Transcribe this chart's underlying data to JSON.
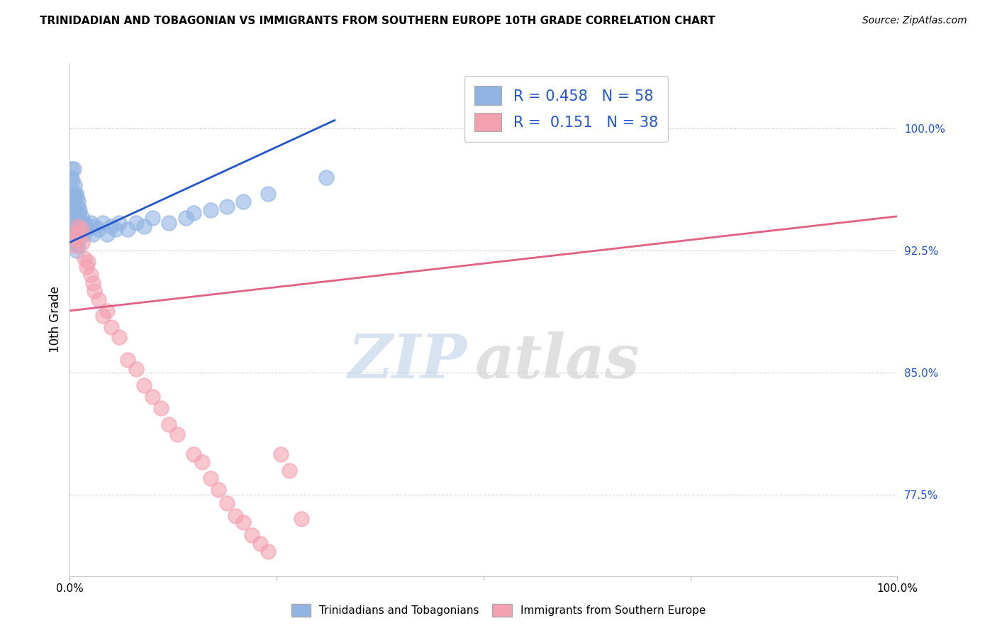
{
  "title": "TRINIDADIAN AND TOBAGONIAN VS IMMIGRANTS FROM SOUTHERN EUROPE 10TH GRADE CORRELATION CHART",
  "source": "Source: ZipAtlas.com",
  "ylabel": "10th Grade",
  "yaxis_labels": [
    "77.5%",
    "85.0%",
    "92.5%",
    "100.0%"
  ],
  "yaxis_values": [
    0.775,
    0.85,
    0.925,
    1.0
  ],
  "xaxis_range": [
    0.0,
    1.0
  ],
  "yaxis_range": [
    0.725,
    1.04
  ],
  "blue_color": "#92b4e3",
  "pink_color": "#f4a0b0",
  "line_blue": "#2255cc",
  "line_pink": "#e06080",
  "watermark_zip": "ZIP",
  "watermark_atlas": "atlas",
  "blue_scatter_x": [
    0.001,
    0.002,
    0.002,
    0.003,
    0.003,
    0.004,
    0.004,
    0.005,
    0.005,
    0.005,
    0.006,
    0.006,
    0.006,
    0.007,
    0.007,
    0.007,
    0.008,
    0.008,
    0.008,
    0.008,
    0.009,
    0.009,
    0.01,
    0.01,
    0.01,
    0.011,
    0.011,
    0.012,
    0.012,
    0.013,
    0.014,
    0.015,
    0.016,
    0.017,
    0.018,
    0.02,
    0.022,
    0.025,
    0.028,
    0.03,
    0.035,
    0.04,
    0.045,
    0.05,
    0.055,
    0.06,
    0.07,
    0.08,
    0.09,
    0.1,
    0.12,
    0.14,
    0.15,
    0.17,
    0.19,
    0.21,
    0.24,
    0.31
  ],
  "blue_scatter_y": [
    0.97,
    0.975,
    0.955,
    0.968,
    0.948,
    0.96,
    0.938,
    0.975,
    0.958,
    0.94,
    0.965,
    0.95,
    0.935,
    0.96,
    0.945,
    0.93,
    0.958,
    0.942,
    0.935,
    0.925,
    0.952,
    0.938,
    0.955,
    0.942,
    0.928,
    0.948,
    0.935,
    0.95,
    0.938,
    0.942,
    0.94,
    0.945,
    0.938,
    0.942,
    0.935,
    0.938,
    0.94,
    0.942,
    0.935,
    0.94,
    0.938,
    0.942,
    0.935,
    0.94,
    0.938,
    0.942,
    0.938,
    0.942,
    0.94,
    0.945,
    0.942,
    0.945,
    0.948,
    0.95,
    0.952,
    0.955,
    0.96,
    0.97
  ],
  "pink_scatter_x": [
    0.004,
    0.006,
    0.008,
    0.01,
    0.012,
    0.014,
    0.015,
    0.018,
    0.02,
    0.022,
    0.025,
    0.028,
    0.03,
    0.035,
    0.04,
    0.045,
    0.05,
    0.06,
    0.07,
    0.08,
    0.09,
    0.1,
    0.11,
    0.12,
    0.13,
    0.15,
    0.16,
    0.17,
    0.18,
    0.19,
    0.2,
    0.21,
    0.22,
    0.23,
    0.24,
    0.255,
    0.265,
    0.28
  ],
  "pink_scatter_y": [
    0.935,
    0.928,
    0.932,
    0.94,
    0.935,
    0.938,
    0.93,
    0.92,
    0.915,
    0.918,
    0.91,
    0.905,
    0.9,
    0.895,
    0.885,
    0.888,
    0.878,
    0.872,
    0.858,
    0.852,
    0.842,
    0.835,
    0.828,
    0.818,
    0.812,
    0.8,
    0.795,
    0.785,
    0.778,
    0.77,
    0.762,
    0.758,
    0.75,
    0.745,
    0.74,
    0.8,
    0.79,
    0.76
  ],
  "blue_line_x0": 0.0,
  "blue_line_y0": 0.93,
  "blue_line_x1": 0.32,
  "blue_line_y1": 1.005,
  "pink_line_x0": 0.0,
  "pink_line_y0": 0.888,
  "pink_line_x1": 1.0,
  "pink_line_y1": 0.946
}
